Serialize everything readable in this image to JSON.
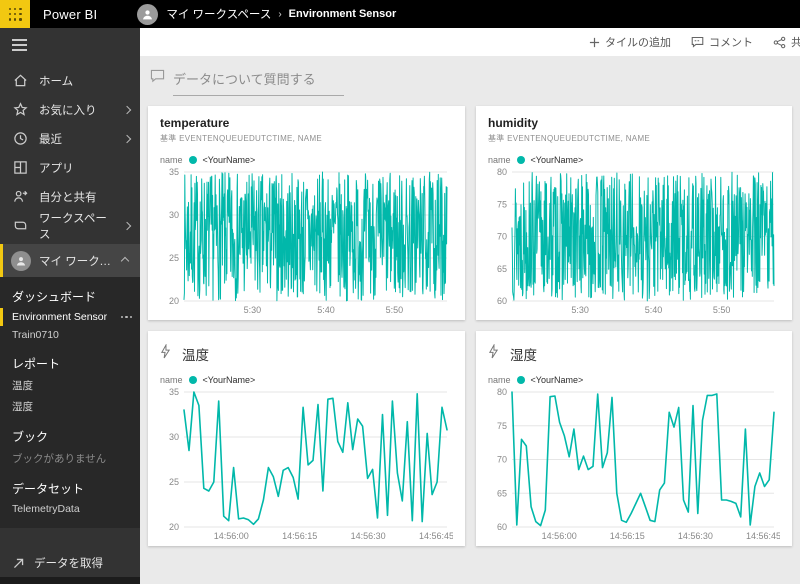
{
  "colors": {
    "accent": "#01B8AA",
    "brand_yellow": "#F2C811",
    "grid": "#e6e6e6"
  },
  "topbar": {
    "brand": "Power BI",
    "breadcrumb_root": "マイ ワークスペース",
    "breadcrumb_sep": "›",
    "breadcrumb_current": "Environment Sensor"
  },
  "toolbar": {
    "add_tile": "タイルの追加",
    "comment": "コメント",
    "share": "共有"
  },
  "sidebar": {
    "nav": [
      {
        "label": "ホーム"
      },
      {
        "label": "お気に入り"
      },
      {
        "label": "最近"
      },
      {
        "label": "アプリ"
      },
      {
        "label": "自分と共有"
      },
      {
        "label": "ワークスペース"
      }
    ],
    "workspace_label": "マイ ワークスペース",
    "sections": {
      "dashboards_header": "ダッシュボード",
      "dashboards": [
        {
          "label": "Environment Sensor"
        },
        {
          "label": "Train0710"
        }
      ],
      "reports_header": "レポート",
      "reports": [
        {
          "label": "温度"
        },
        {
          "label": "湿度"
        }
      ],
      "workbooks_header": "ブック",
      "workbooks_empty": "ブックがありません",
      "datasets_header": "データセット",
      "datasets": [
        {
          "label": "TelemetryData"
        }
      ]
    },
    "get_data": "データを取得"
  },
  "qa": {
    "label": "データについて質問する"
  },
  "chart_data": [
    {
      "type": "line",
      "title": "temperature",
      "subtitle": "基準 EVENTENQUEUEDUTCTIME, NAME",
      "legend_field": "name",
      "legend_value": "<YourName>",
      "ylim": [
        20,
        35
      ],
      "yticks": [
        20,
        25,
        30,
        35
      ],
      "xticks": [
        {
          "label": "5:30",
          "f": 0.26
        },
        {
          "label": "5:40",
          "f": 0.54
        },
        {
          "label": "5:50",
          "f": 0.8
        }
      ],
      "noise": {
        "min": 20,
        "max": 35,
        "points": 700,
        "seed": 7
      },
      "stroke_width": 1
    },
    {
      "type": "line",
      "title": "humidity",
      "subtitle": "基準 EVENTENQUEUEDUTCTIME, NAME",
      "legend_field": "name",
      "legend_value": "<YourName>",
      "ylim": [
        60,
        80
      ],
      "yticks": [
        60,
        65,
        70,
        75,
        80
      ],
      "xticks": [
        {
          "label": "5:30",
          "f": 0.26
        },
        {
          "label": "5:40",
          "f": 0.54
        },
        {
          "label": "5:50",
          "f": 0.8
        }
      ],
      "noise": {
        "min": 60,
        "max": 80,
        "points": 700,
        "seed": 13
      },
      "stroke_width": 1
    },
    {
      "type": "line",
      "title": "温度",
      "legend_field": "name",
      "legend_value": "<YourName>",
      "ylim": [
        20,
        35
      ],
      "yticks": [
        20,
        25,
        30,
        35
      ],
      "xticks": [
        {
          "label": "14:56:00",
          "f": 0.18
        },
        {
          "label": "14:56:15",
          "f": 0.44
        },
        {
          "label": "14:56:30",
          "f": 0.7
        },
        {
          "label": "14:56:45",
          "f": 0.96
        }
      ],
      "values": [
        33,
        28.5,
        35,
        33.5,
        24.3,
        24,
        25,
        34,
        21.2,
        20.7,
        26.6,
        20.9,
        21,
        20.8,
        20.3,
        20.9,
        23,
        26.6,
        25.6,
        23.4,
        26.3,
        26.6,
        25.5,
        23.1,
        33.3,
        26.9,
        27.4,
        33.6,
        24,
        34.2,
        34.3,
        29.5,
        28.3,
        33.8,
        28.6,
        32,
        31.2,
        25.4,
        26.4,
        21,
        32.5,
        21.3,
        34,
        26,
        22.9,
        31.7,
        20.7,
        34.8,
        20.6,
        30.4,
        23.6,
        25,
        33.3,
        30.8
      ],
      "stroke_width": 1.6
    },
    {
      "type": "line",
      "title": "湿度",
      "legend_field": "name",
      "legend_value": "<YourName>",
      "ylim": [
        60,
        80
      ],
      "yticks": [
        60,
        65,
        70,
        75,
        80
      ],
      "xticks": [
        {
          "label": "14:56:00",
          "f": 0.18
        },
        {
          "label": "14:56:15",
          "f": 0.44
        },
        {
          "label": "14:56:30",
          "f": 0.7
        },
        {
          "label": "14:56:45",
          "f": 0.96
        }
      ],
      "values": [
        80,
        60.3,
        73,
        72,
        63,
        60.8,
        60.2,
        62.5,
        79.3,
        79.4,
        75.5,
        73.5,
        70.4,
        74.5,
        68.5,
        70.5,
        68.5,
        69,
        79.7,
        68.8,
        71,
        79.2,
        65,
        61,
        60.7,
        62,
        63.5,
        65,
        63,
        61,
        60.8,
        65.5,
        66.5,
        77,
        74.8,
        77.7,
        64,
        62.2,
        78,
        62,
        75.8,
        79.5,
        79.5,
        79.7,
        64,
        64,
        63.8,
        63.5,
        61.5,
        74.5,
        60.3,
        66,
        68,
        66,
        67,
        77
      ],
      "stroke_width": 1.6
    }
  ]
}
